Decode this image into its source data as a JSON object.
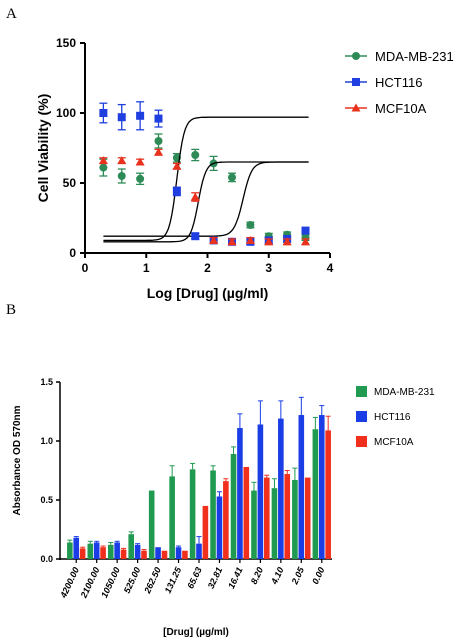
{
  "panels": {
    "a_label": "A",
    "b_label": "B"
  },
  "chart_data": [
    {
      "type": "scatter",
      "panel": "A",
      "title": "",
      "xlabel": "Log [Drug] (µg/ml)",
      "ylabel": "Cell Viability (%)",
      "xlim": [
        0,
        4
      ],
      "ylim": [
        0,
        150
      ],
      "xticks": [
        0,
        1,
        2,
        3,
        4
      ],
      "yticks": [
        0,
        50,
        100,
        150
      ],
      "legend": "top-right",
      "grid": false,
      "series": [
        {
          "name": "MDA-MB-231",
          "marker": "circle",
          "color": "#2e8b57",
          "x": [
            0.3,
            0.6,
            0.9,
            1.2,
            1.5,
            1.8,
            2.1,
            2.4,
            2.7,
            3.0,
            3.3,
            3.6
          ],
          "y": [
            61,
            55,
            53,
            80,
            68,
            70,
            64,
            54,
            20,
            12,
            13,
            11
          ],
          "err": [
            6,
            5,
            4,
            5,
            3,
            4,
            5,
            3,
            2,
            2,
            2,
            2
          ],
          "fit": {
            "top": 65,
            "bottom": 12,
            "ec50": 2.58,
            "slope": -6
          }
        },
        {
          "name": "HCT116",
          "marker": "square",
          "color": "#1f3fe0",
          "x": [
            0.3,
            0.6,
            0.9,
            1.2,
            1.5,
            1.8,
            2.1,
            2.4,
            2.7,
            3.0,
            3.3,
            3.6
          ],
          "y": [
            100,
            97,
            98,
            96,
            44,
            12,
            9,
            8,
            8,
            9,
            10,
            16
          ],
          "err": [
            7,
            9,
            10,
            6,
            3,
            2,
            2,
            2,
            2,
            2,
            2,
            2
          ],
          "fit": {
            "top": 97,
            "bottom": 9,
            "ec50": 1.5,
            "slope": -7
          }
        },
        {
          "name": "MCF10A",
          "marker": "triangle",
          "color": "#e8321e",
          "x": [
            0.3,
            0.6,
            0.9,
            1.2,
            1.5,
            1.8,
            2.1,
            2.4,
            2.7,
            3.0,
            3.3,
            3.6
          ],
          "y": [
            66,
            66,
            65,
            72,
            62,
            40,
            9,
            8,
            9,
            8,
            8,
            8
          ],
          "err": [
            2,
            2,
            2,
            2,
            2,
            3,
            2,
            2,
            2,
            2,
            2,
            2
          ],
          "fit": {
            "top": 65,
            "bottom": 8,
            "ec50": 1.85,
            "slope": -7
          }
        }
      ]
    },
    {
      "type": "bar",
      "panel": "B",
      "title": "",
      "xlabel": "[Drug]  (µg/ml)",
      "ylabel": "Absorbance OD 570nm",
      "ylim": [
        0,
        1.5
      ],
      "yticks": [
        "0.0",
        "0.5",
        "1.0",
        "1.5"
      ],
      "legend": "right",
      "grid": false,
      "categories": [
        "4200.00",
        "2100.00",
        "1050.00",
        "525.00",
        "262.50",
        "131.25",
        "65.63",
        "32.81",
        "16.41",
        "8.20",
        "4.10",
        "2.05",
        "0.00"
      ],
      "series": [
        {
          "name": "MDA-MB-231",
          "color": "#1f9a50",
          "values": [
            0.14,
            0.13,
            0.12,
            0.21,
            0.58,
            0.7,
            0.76,
            0.75,
            0.89,
            0.58,
            0.6,
            0.67,
            1.1
          ],
          "err": [
            0.02,
            0.02,
            0.02,
            0.02,
            0.0,
            0.09,
            0.05,
            0.04,
            0.06,
            0.07,
            0.08,
            0.1,
            0.1
          ]
        },
        {
          "name": "HCT116",
          "color": "#1a3de6",
          "values": [
            0.18,
            0.14,
            0.14,
            0.12,
            0.1,
            0.1,
            0.13,
            0.53,
            1.11,
            1.14,
            1.19,
            1.22,
            1.22
          ],
          "err": [
            0.01,
            0.01,
            0.01,
            0.01,
            0.0,
            0.01,
            0.06,
            0.04,
            0.12,
            0.2,
            0.15,
            0.15,
            0.08
          ]
        },
        {
          "name": "MCF10A",
          "color": "#f0301c",
          "values": [
            0.09,
            0.1,
            0.08,
            0.07,
            0.07,
            0.07,
            0.45,
            0.66,
            0.78,
            0.69,
            0.72,
            0.69,
            1.09
          ],
          "err": [
            0.01,
            0.01,
            0.01,
            0.01,
            0.0,
            0.0,
            0.0,
            0.02,
            0.0,
            0.02,
            0.03,
            0.0,
            0.12
          ]
        }
      ]
    }
  ]
}
